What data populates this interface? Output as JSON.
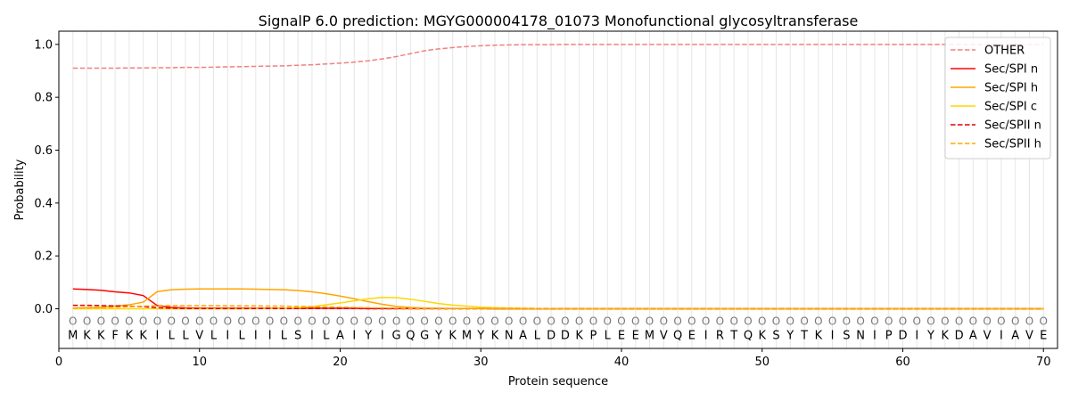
{
  "chart_data": {
    "type": "line",
    "title": "SignalP 6.0 prediction: MGYG000004178_01073 Monofunctional glycosyltransferase",
    "xlabel": "Protein sequence",
    "ylabel": "Probability",
    "xlim": [
      0,
      71
    ],
    "ylim": [
      -0.15,
      1.05
    ],
    "xticks": [
      0,
      10,
      20,
      30,
      40,
      50,
      60,
      70
    ],
    "yticks": [
      0.0,
      0.2,
      0.4,
      0.6,
      0.8,
      1.0
    ],
    "xtick_labels": [
      "0",
      "10",
      "20",
      "30",
      "40",
      "50",
      "60",
      "70"
    ],
    "ytick_labels": [
      "0.0",
      "0.2",
      "0.4",
      "0.6",
      "0.8",
      "1.0"
    ],
    "grid": "vertical lines at each residue",
    "legend_position": "top-right",
    "sequence": [
      "M",
      "K",
      "K",
      "F",
      "K",
      "K",
      "I",
      "L",
      "L",
      "V",
      "L",
      "I",
      "L",
      "I",
      "I",
      "L",
      "S",
      "I",
      "L",
      "A",
      "I",
      "Y",
      "I",
      "G",
      "Q",
      "G",
      "Y",
      "K",
      "M",
      "Y",
      "K",
      "N",
      "A",
      "L",
      "D",
      "D",
      "K",
      "P",
      "L",
      "E",
      "E",
      "M",
      "V",
      "Q",
      "E",
      "I",
      "R",
      "T",
      "Q",
      "K",
      "S",
      "Y",
      "T",
      "K",
      "I",
      "S",
      "N",
      "I",
      "P",
      "D",
      "I",
      "Y",
      "K",
      "D",
      "A",
      "V",
      "I",
      "A",
      "V",
      "E"
    ],
    "predicted_labels": [
      "O",
      "O",
      "O",
      "O",
      "O",
      "O",
      "O",
      "O",
      "O",
      "O",
      "O",
      "O",
      "O",
      "O",
      "O",
      "O",
      "O",
      "O",
      "O",
      "O",
      "O",
      "O",
      "O",
      "O",
      "O",
      "O",
      "O",
      "O",
      "O",
      "O",
      "O",
      "O",
      "O",
      "O",
      "O",
      "O",
      "O",
      "O",
      "O",
      "O",
      "O",
      "O",
      "O",
      "O",
      "O",
      "O",
      "O",
      "O",
      "O",
      "O",
      "O",
      "O",
      "O",
      "O",
      "O",
      "O",
      "O",
      "O",
      "O",
      "O",
      "O",
      "O",
      "O",
      "O",
      "O",
      "O",
      "O",
      "O",
      "O",
      "O"
    ],
    "series": [
      {
        "name": "OTHER",
        "color": "#f08080",
        "dash": "dashed",
        "values": [
          0.91,
          0.91,
          0.91,
          0.91,
          0.911,
          0.911,
          0.912,
          0.912,
          0.913,
          0.913,
          0.914,
          0.915,
          0.916,
          0.917,
          0.918,
          0.919,
          0.921,
          0.923,
          0.926,
          0.929,
          0.933,
          0.938,
          0.945,
          0.954,
          0.965,
          0.976,
          0.983,
          0.988,
          0.992,
          0.995,
          0.997,
          0.998,
          0.999,
          0.999,
          0.999,
          1.0,
          1.0,
          1.0,
          1.0,
          1.0,
          1.0,
          1.0,
          1.0,
          1.0,
          1.0,
          1.0,
          1.0,
          1.0,
          1.0,
          1.0,
          1.0,
          1.0,
          1.0,
          1.0,
          1.0,
          1.0,
          1.0,
          1.0,
          1.0,
          1.0,
          1.0,
          1.0,
          1.0,
          1.0,
          1.0,
          1.0,
          1.0,
          1.0,
          1.0,
          1.0
        ]
      },
      {
        "name": "Sec/SPI n",
        "color": "#ff0000",
        "dash": "solid",
        "values": [
          0.075,
          0.073,
          0.07,
          0.064,
          0.06,
          0.05,
          0.012,
          0.005,
          0.003,
          0.002,
          0.002,
          0.002,
          0.002,
          0.002,
          0.002,
          0.002,
          0.002,
          0.002,
          0.002,
          0.002,
          0.002,
          0.001,
          0.001,
          0.001,
          0.001,
          0.001,
          0.001,
          0.001,
          0.001,
          0.001,
          0.0,
          0.0,
          0.0,
          0.0,
          0.0,
          0.0,
          0.0,
          0.0,
          0.0,
          0.0,
          0.0,
          0.0,
          0.0,
          0.0,
          0.0,
          0.0,
          0.0,
          0.0,
          0.0,
          0.0,
          0.0,
          0.0,
          0.0,
          0.0,
          0.0,
          0.0,
          0.0,
          0.0,
          0.0,
          0.0,
          0.0,
          0.0,
          0.0,
          0.0,
          0.0,
          0.0,
          0.0,
          0.0,
          0.0,
          0.0
        ]
      },
      {
        "name": "Sec/SPI h",
        "color": "#ffa500",
        "dash": "solid",
        "values": [
          0.003,
          0.004,
          0.006,
          0.01,
          0.015,
          0.025,
          0.065,
          0.072,
          0.074,
          0.075,
          0.075,
          0.075,
          0.075,
          0.074,
          0.073,
          0.072,
          0.069,
          0.064,
          0.057,
          0.048,
          0.038,
          0.027,
          0.017,
          0.009,
          0.005,
          0.003,
          0.002,
          0.001,
          0.001,
          0.001,
          0.001,
          0.0,
          0.0,
          0.0,
          0.0,
          0.0,
          0.0,
          0.0,
          0.0,
          0.0,
          0.0,
          0.0,
          0.0,
          0.0,
          0.0,
          0.0,
          0.0,
          0.0,
          0.0,
          0.0,
          0.0,
          0.0,
          0.0,
          0.0,
          0.0,
          0.0,
          0.0,
          0.0,
          0.0,
          0.0,
          0.0,
          0.0,
          0.0,
          0.0,
          0.0,
          0.0,
          0.0,
          0.0,
          0.0,
          0.0
        ]
      },
      {
        "name": "Sec/SPI c",
        "color": "#ffd700",
        "dash": "solid",
        "values": [
          0.0,
          0.0,
          0.0,
          0.0,
          0.0,
          0.0,
          0.0,
          0.0,
          0.0,
          0.0,
          0.0,
          0.0,
          0.0,
          0.001,
          0.001,
          0.002,
          0.004,
          0.008,
          0.015,
          0.022,
          0.03,
          0.038,
          0.043,
          0.042,
          0.036,
          0.028,
          0.02,
          0.014,
          0.01,
          0.006,
          0.004,
          0.003,
          0.002,
          0.001,
          0.001,
          0.0,
          0.0,
          0.0,
          0.0,
          0.0,
          0.0,
          0.0,
          0.0,
          0.0,
          0.0,
          0.0,
          0.0,
          0.0,
          0.0,
          0.0,
          0.0,
          0.0,
          0.0,
          0.0,
          0.0,
          0.0,
          0.0,
          0.0,
          0.0,
          0.0,
          0.0,
          0.0,
          0.0,
          0.0,
          0.0,
          0.0,
          0.0,
          0.0,
          0.0,
          0.0
        ]
      },
      {
        "name": "Sec/SPII n",
        "color": "#dd0000",
        "dash": "dashed",
        "values": [
          0.013,
          0.013,
          0.012,
          0.011,
          0.01,
          0.008,
          0.004,
          0.002,
          0.001,
          0.001,
          0.001,
          0.001,
          0.001,
          0.001,
          0.001,
          0.001,
          0.001,
          0.001,
          0.001,
          0.001,
          0.001,
          0.0,
          0.0,
          0.0,
          0.0,
          0.0,
          0.0,
          0.0,
          0.0,
          0.0,
          0.0,
          0.0,
          0.0,
          0.0,
          0.0,
          0.0,
          0.0,
          0.0,
          0.0,
          0.0,
          0.0,
          0.0,
          0.0,
          0.0,
          0.0,
          0.0,
          0.0,
          0.0,
          0.0,
          0.0,
          0.0,
          0.0,
          0.0,
          0.0,
          0.0,
          0.0,
          0.0,
          0.0,
          0.0,
          0.0,
          0.0,
          0.0,
          0.0,
          0.0,
          0.0,
          0.0,
          0.0,
          0.0,
          0.0,
          0.0
        ]
      },
      {
        "name": "Sec/SPII h",
        "color": "#ffa500",
        "dash": "dashed",
        "values": [
          0.002,
          0.003,
          0.004,
          0.006,
          0.008,
          0.01,
          0.012,
          0.012,
          0.012,
          0.012,
          0.012,
          0.011,
          0.011,
          0.011,
          0.01,
          0.01,
          0.009,
          0.008,
          0.007,
          0.006,
          0.005,
          0.004,
          0.003,
          0.002,
          0.001,
          0.001,
          0.001,
          0.0,
          0.0,
          0.0,
          0.0,
          0.0,
          0.0,
          0.0,
          0.0,
          0.0,
          0.0,
          0.0,
          0.0,
          0.0,
          0.0,
          0.0,
          0.0,
          0.0,
          0.0,
          0.0,
          0.0,
          0.0,
          0.0,
          0.0,
          0.0,
          0.0,
          0.0,
          0.0,
          0.0,
          0.0,
          0.0,
          0.0,
          0.0,
          0.0,
          0.0,
          0.0,
          0.0,
          0.0,
          0.0,
          0.0,
          0.0,
          0.0,
          0.0,
          0.0
        ]
      }
    ]
  }
}
